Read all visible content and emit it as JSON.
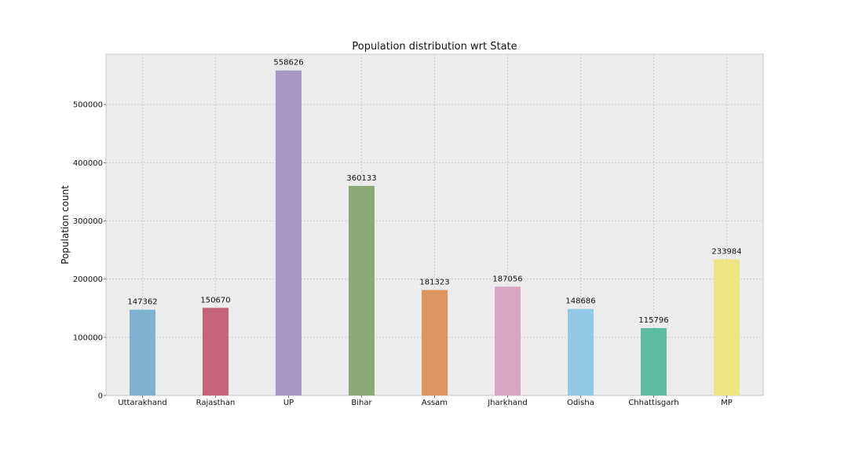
{
  "chart_data": {
    "type": "bar",
    "title": "Population distribution wrt State",
    "xlabel": "",
    "ylabel": "Population count",
    "categories": [
      "Uttarakhand",
      "Rajasthan",
      "UP",
      "Bihar",
      "Assam",
      "Jharkhand",
      "Odisha",
      "Chhattisgarh",
      "MP"
    ],
    "values": [
      147362,
      150670,
      558626,
      360133,
      181323,
      187056,
      148686,
      115796,
      233984
    ],
    "ylim": [
      0,
      586557
    ],
    "yticks": [
      0,
      100000,
      200000,
      300000,
      400000,
      500000
    ],
    "grid": true,
    "bar_colors": [
      "#7fb2d1",
      "#c3647b",
      "#a898c6",
      "#8ba876",
      "#dd9660",
      "#d8a5c3",
      "#91c9e6",
      "#5cbba0",
      "#eee484"
    ],
    "background_color": "#ececec"
  }
}
